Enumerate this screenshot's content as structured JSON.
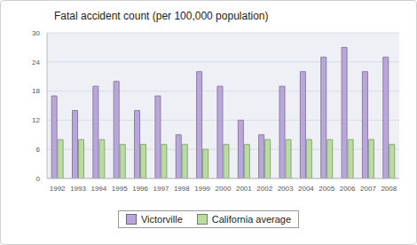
{
  "chart_data": {
    "type": "bar",
    "title": "Fatal accident count (per 100,000 population)",
    "categories": [
      "1992",
      "1993",
      "1994",
      "1995",
      "1996",
      "1997",
      "1998",
      "1999",
      "2000",
      "2001",
      "2002",
      "2003",
      "2004",
      "2005",
      "2006",
      "2007",
      "2008"
    ],
    "series": [
      {
        "name": "Victorville",
        "color": "#b9a7dc",
        "values": [
          17,
          14,
          19,
          20,
          14,
          17,
          9,
          22,
          19,
          12,
          9,
          19,
          22,
          25,
          27,
          22,
          25
        ]
      },
      {
        "name": "California average",
        "color": "#b9dca0",
        "values": [
          8,
          8,
          8,
          7,
          7,
          7,
          7,
          6,
          7,
          7,
          8,
          8,
          8,
          8,
          8,
          8,
          7
        ]
      }
    ],
    "ylim": [
      0,
      30
    ],
    "yticks": [
      0,
      6,
      12,
      18,
      24,
      30
    ],
    "grid": true,
    "legend": "bottom"
  }
}
